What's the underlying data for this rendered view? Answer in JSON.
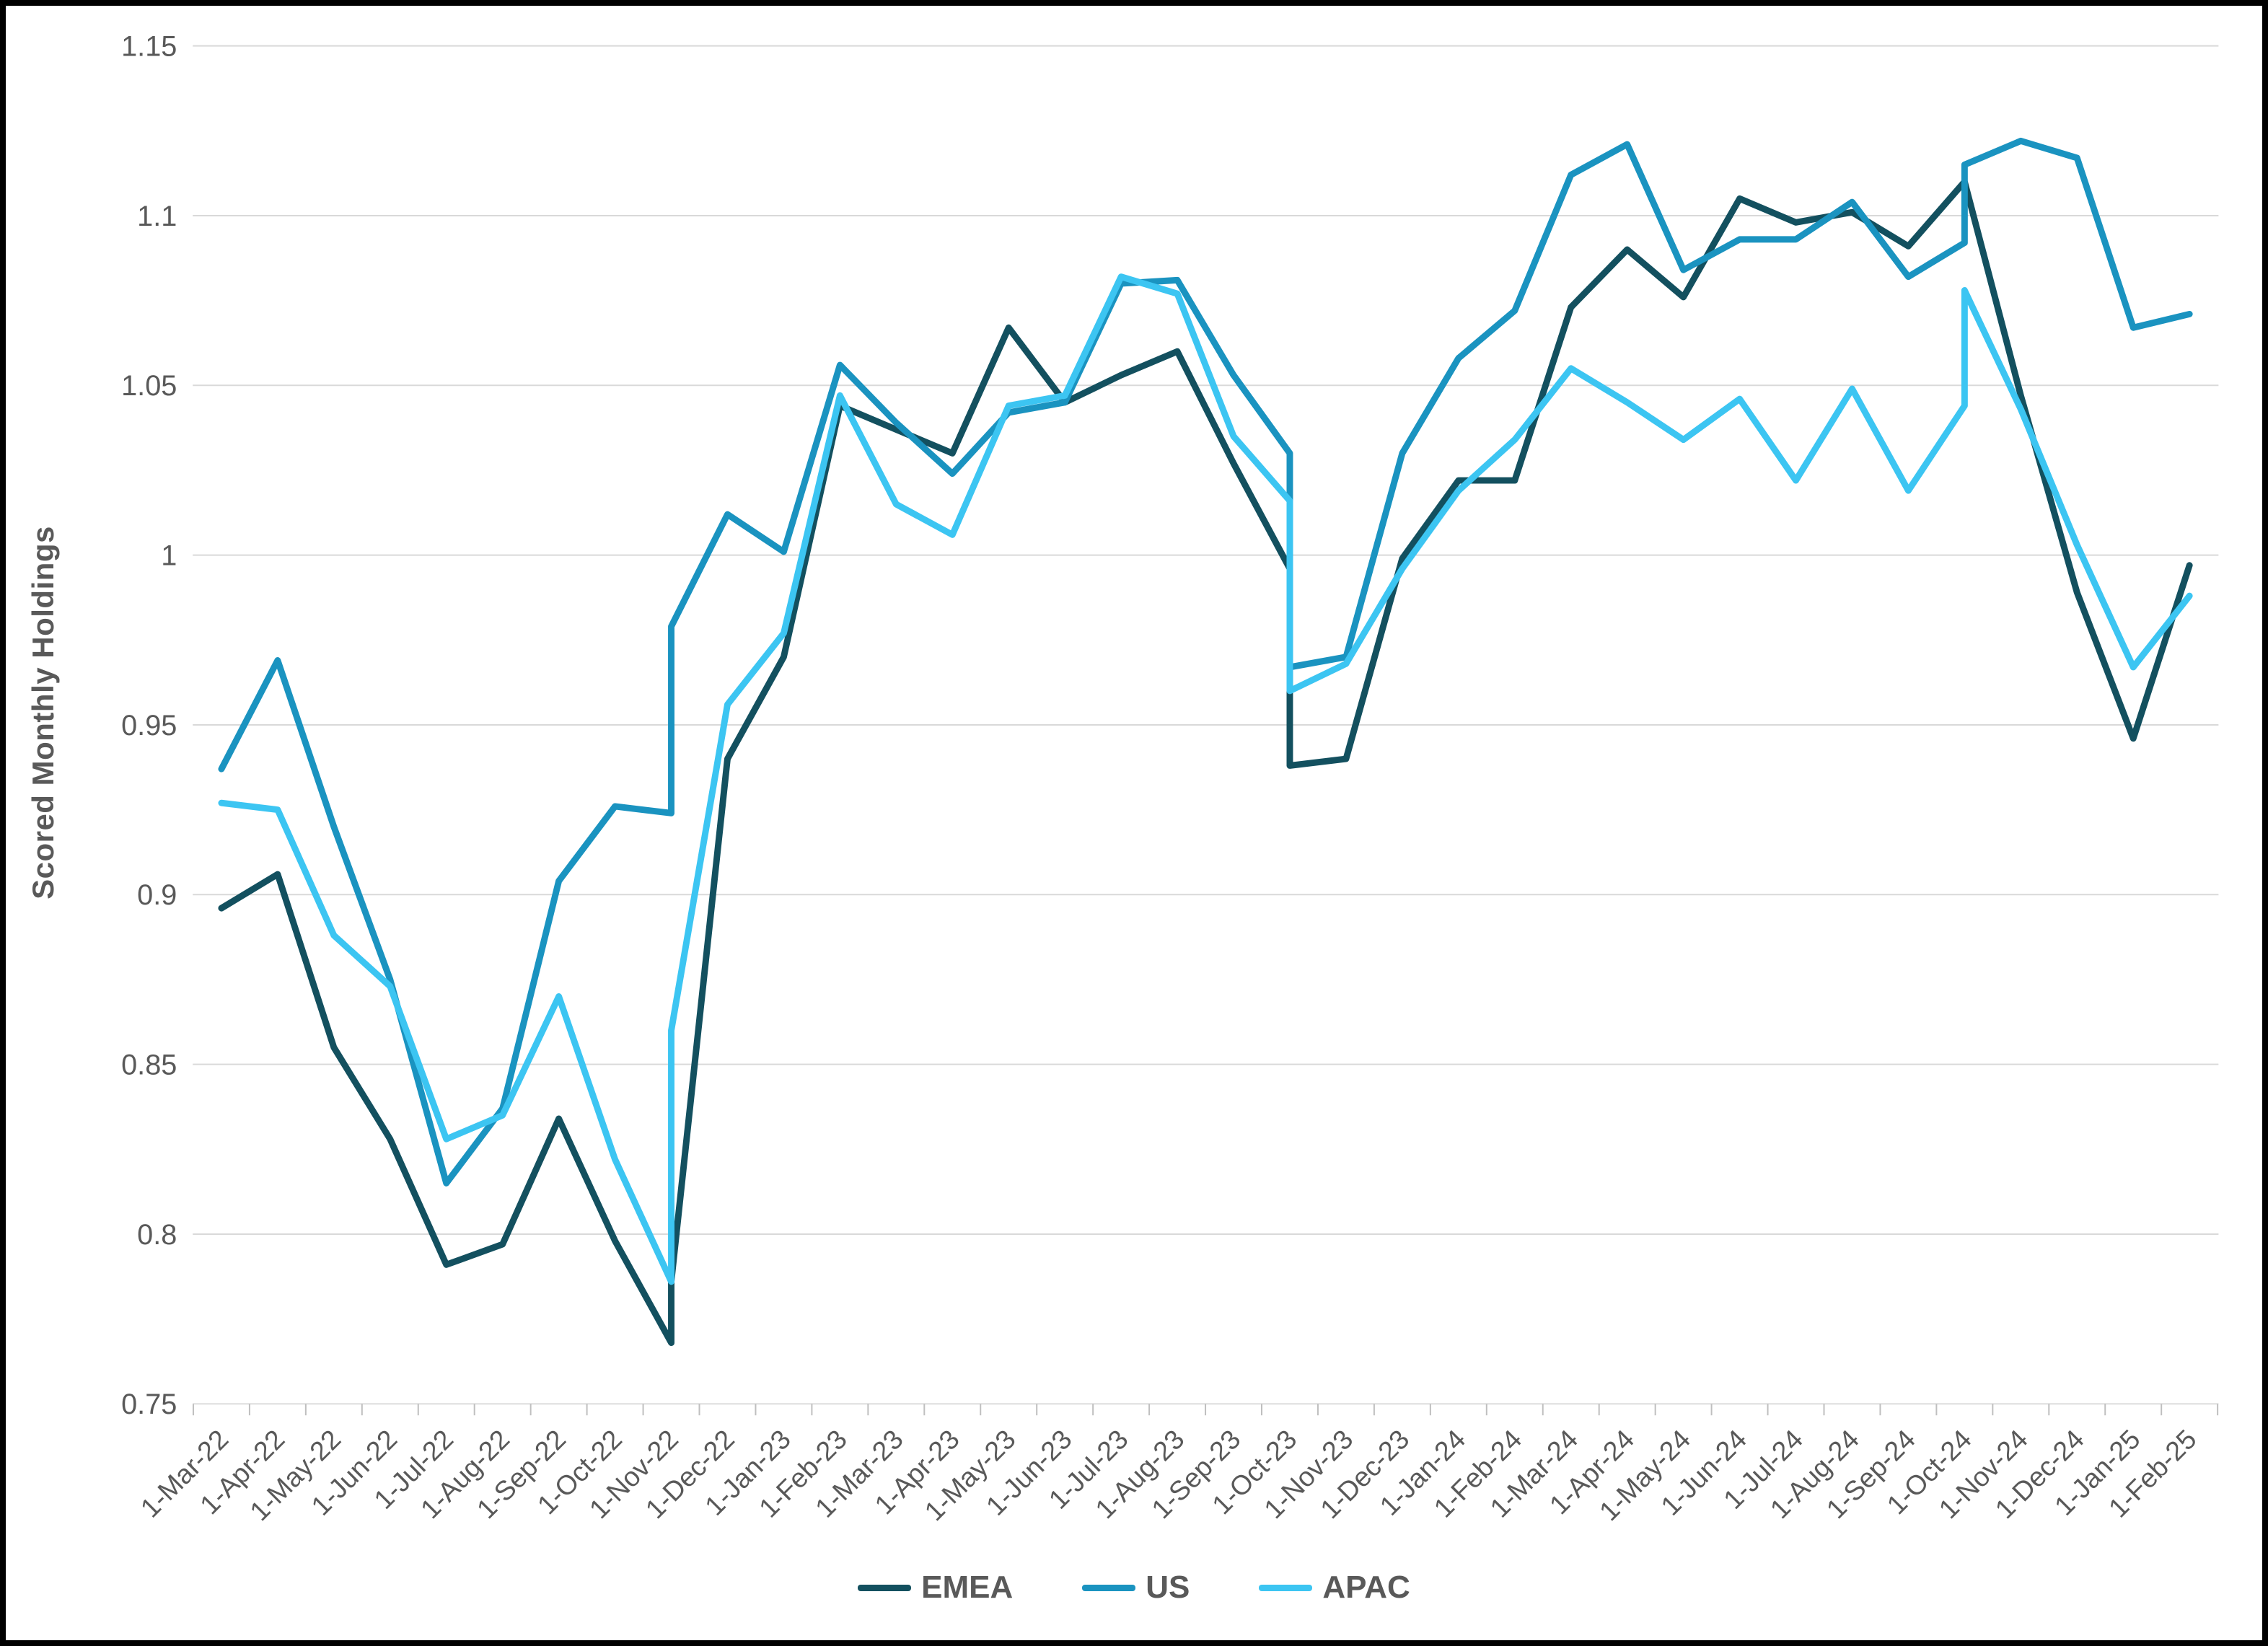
{
  "frame": {
    "background": "#ffffff",
    "border_color": "#000000"
  },
  "chart_data": {
    "type": "line",
    "title": "",
    "xlabel": "",
    "ylabel": "Scored Monthly Holdings",
    "ylim": [
      0.75,
      1.15
    ],
    "y_step": 0.05,
    "grid": "horizontal",
    "gridline_color": "#d9d9d9",
    "axis_label_color": "#595959",
    "legend_position": "bottom-center",
    "y_tick_labels": [
      "0.75",
      "0.8",
      "0.85",
      "0.9",
      "0.95",
      "1",
      "1.05",
      "1.1",
      "1.15"
    ],
    "categories": [
      "1-Mar-22",
      "1-Apr-22",
      "1-May-22",
      "1-Jun-22",
      "1-Jul-22",
      "1-Aug-22",
      "1-Sep-22",
      "1-Oct-22",
      "1-Nov-22",
      "1-Dec-22",
      "1-Jan-23",
      "1-Feb-23",
      "1-Mar-23",
      "1-Apr-23",
      "1-May-23",
      "1-Jun-23",
      "1-Jul-23",
      "1-Aug-23",
      "1-Sep-23",
      "1-Oct-23",
      "1-Nov-23",
      "1-Dec-23",
      "1-Jan-24",
      "1-Feb-24",
      "1-Mar-24",
      "1-Apr-24",
      "1-May-24",
      "1-Jun-24",
      "1-Jul-24",
      "1-Aug-24",
      "1-Sep-24",
      "1-Oct-24",
      "1-Nov-24",
      "1-Dec-24",
      "1-Jan-25",
      "1-Feb-25"
    ],
    "series": [
      {
        "name": "EMEA",
        "color": "#13505f",
        "values": [
          0.896,
          0.906,
          0.855,
          0.828,
          0.791,
          0.797,
          0.834,
          0.798,
          0.768,
          0.94,
          0.97,
          1.044,
          1.037,
          1.03,
          1.067,
          1.045,
          1.053,
          1.06,
          1.027,
          0.996,
          0.94,
          0.999,
          1.022,
          1.022,
          1.073,
          1.09,
          1.076,
          1.105,
          1.098,
          1.101,
          1.091,
          1.11,
          1.047,
          0.989,
          0.946,
          0.997
        ],
        "jumps": [
          {
            "index": 8,
            "to": 0.786
          },
          {
            "index": 19,
            "to": 0.938
          }
        ]
      },
      {
        "name": "US",
        "color": "#1a93c0",
        "values": [
          0.937,
          0.969,
          0.92,
          0.875,
          0.815,
          0.837,
          0.904,
          0.926,
          0.924,
          1.012,
          1.001,
          1.056,
          1.039,
          1.024,
          1.042,
          1.045,
          1.08,
          1.081,
          1.053,
          1.03,
          0.97,
          1.03,
          1.058,
          1.072,
          1.112,
          1.121,
          1.084,
          1.093,
          1.093,
          1.104,
          1.082,
          1.092,
          1.122,
          1.117,
          1.067,
          1.071
        ],
        "jumps": [
          {
            "index": 8,
            "to": 0.979
          },
          {
            "index": 19,
            "to": 0.967
          },
          {
            "index": 31,
            "to": 1.115
          }
        ]
      },
      {
        "name": "APAC",
        "color": "#3cc5f2",
        "values": [
          0.927,
          0.925,
          0.888,
          0.873,
          0.828,
          0.835,
          0.87,
          0.822,
          0.786,
          0.956,
          0.977,
          1.047,
          1.015,
          1.006,
          1.044,
          1.047,
          1.082,
          1.077,
          1.035,
          1.016,
          0.968,
          0.996,
          1.019,
          1.034,
          1.055,
          1.045,
          1.034,
          1.046,
          1.022,
          1.049,
          1.019,
          1.044,
          1.043,
          1.003,
          0.967,
          0.988
        ],
        "jumps": [
          {
            "index": 8,
            "to": 0.86
          },
          {
            "index": 19,
            "to": 0.96
          },
          {
            "index": 31,
            "to": 1.078
          }
        ]
      }
    ]
  }
}
